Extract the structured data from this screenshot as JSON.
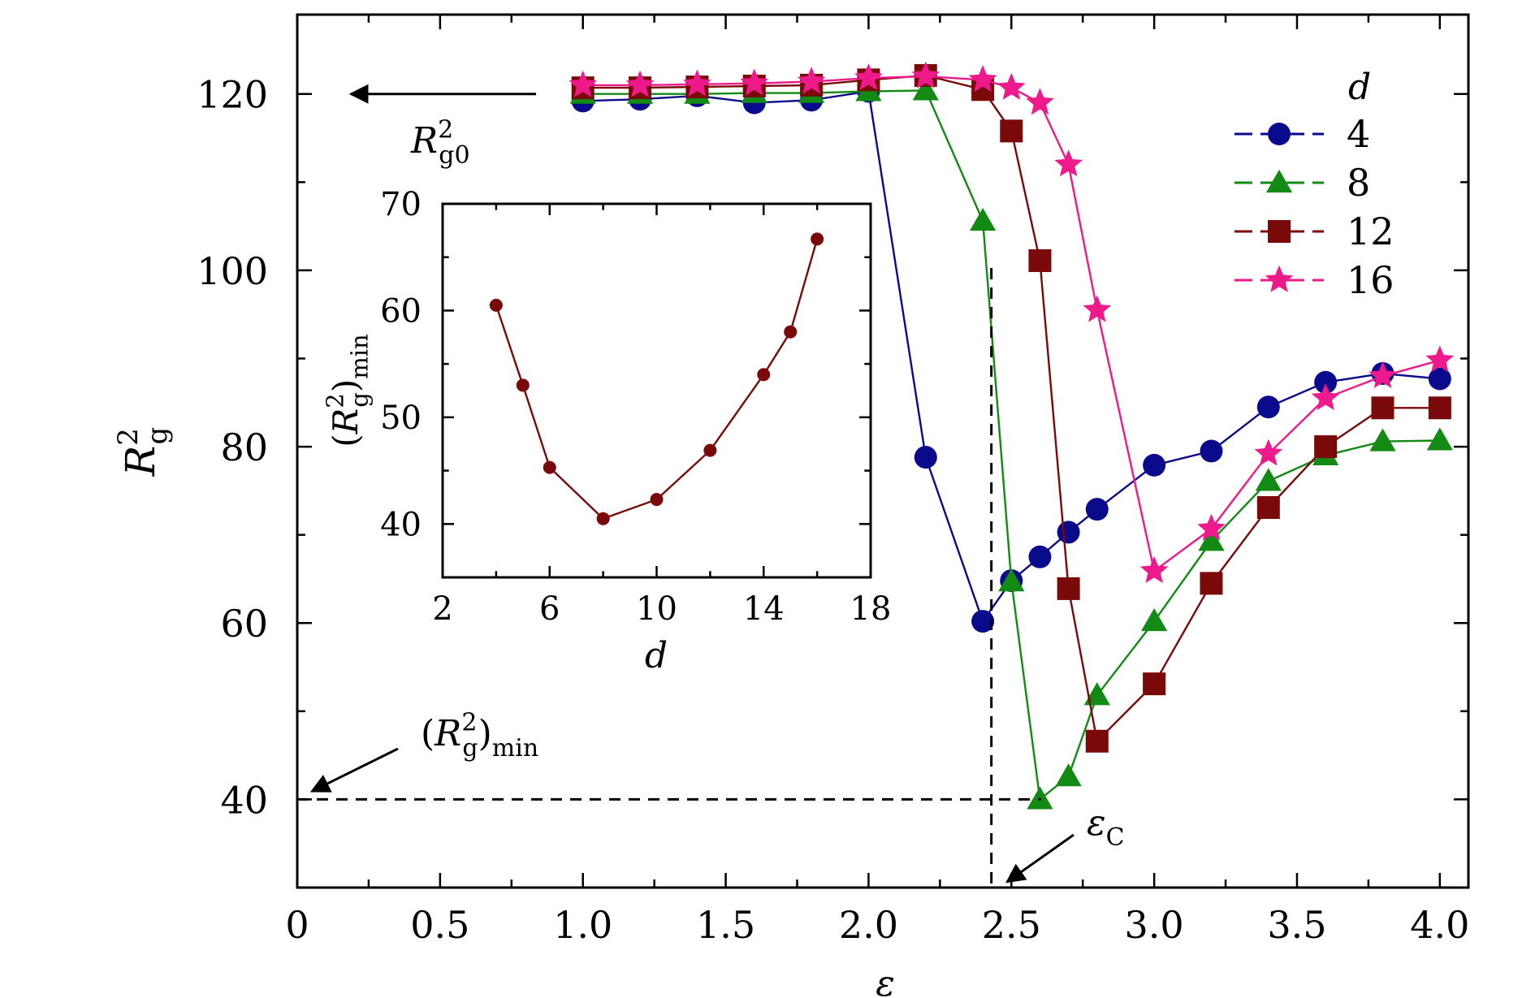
{
  "chart_data": [
    {
      "type": "line",
      "title": "",
      "xlabel": "ε",
      "ylabel": "R_g^2",
      "xlim": [
        0,
        4.1
      ],
      "ylim": [
        30,
        129
      ],
      "x_ticks": [
        0,
        0.5,
        1.0,
        1.5,
        2.0,
        2.5,
        3.0,
        3.5,
        4.0
      ],
      "x_tick_labels": [
        "0",
        "0.5",
        "1.0",
        "1.5",
        "2.0",
        "2.5",
        "3.0",
        "3.5",
        "4.0"
      ],
      "y_ticks": [
        40,
        60,
        80,
        100,
        120
      ],
      "y_tick_labels": [
        "40",
        "60",
        "80",
        "100",
        "120"
      ],
      "grid": false,
      "legend": {
        "title": "d",
        "placement": "top-right"
      },
      "series": [
        {
          "name": "4",
          "color": "#0a0a8c",
          "marker": "circle",
          "x": [
            1.0,
            1.2,
            1.4,
            1.6,
            1.8,
            2.0,
            2.2,
            2.4,
            2.5,
            2.6,
            2.7,
            2.8,
            3.0,
            3.2,
            3.4,
            3.6,
            3.8,
            4.0
          ],
          "y": [
            119.2,
            119.4,
            119.8,
            119.0,
            119.3,
            120.3,
            78.8,
            60.2,
            64.8,
            67.5,
            70.3,
            72.9,
            77.9,
            79.5,
            84.5,
            87.3,
            88.3,
            87.7
          ]
        },
        {
          "name": "8",
          "color": "#138a13",
          "marker": "triangle",
          "x": [
            1.0,
            1.2,
            1.4,
            1.6,
            1.8,
            2.0,
            2.2,
            2.4,
            2.5,
            2.6,
            2.7,
            2.8,
            3.0,
            3.2,
            3.4,
            3.6,
            3.8,
            4.0
          ],
          "y": [
            120.0,
            120.0,
            120.0,
            120.1,
            120.1,
            120.3,
            120.4,
            105.6,
            64.7,
            40.0,
            42.6,
            51.8,
            60.2,
            69.3,
            76.1,
            79.0,
            80.6,
            80.7
          ]
        },
        {
          "name": "12",
          "color": "#7a0a0a",
          "marker": "square",
          "x": [
            1.0,
            1.2,
            1.4,
            1.6,
            1.8,
            2.0,
            2.2,
            2.4,
            2.5,
            2.6,
            2.7,
            2.8,
            3.0,
            3.2,
            3.4,
            3.6,
            3.8,
            4.0
          ],
          "y": [
            120.7,
            120.7,
            120.8,
            120.9,
            121.0,
            121.6,
            122.1,
            120.5,
            115.8,
            101.1,
            63.9,
            46.6,
            53.1,
            64.5,
            73.1,
            80.0,
            84.4,
            84.4
          ]
        },
        {
          "name": "16",
          "color": "#ee1a8c",
          "marker": "star",
          "x": [
            1.0,
            1.2,
            1.4,
            1.6,
            1.8,
            2.0,
            2.2,
            2.4,
            2.5,
            2.6,
            2.7,
            2.8,
            3.0,
            3.2,
            3.4,
            3.6,
            3.8,
            4.0
          ],
          "y": [
            121.0,
            121.0,
            121.1,
            121.2,
            121.4,
            121.8,
            122.0,
            121.6,
            120.7,
            119.0,
            112.0,
            95.5,
            65.9,
            70.7,
            79.2,
            85.5,
            88.0,
            89.8
          ]
        }
      ],
      "annotations": [
        {
          "text": "R_g0^2",
          "target_y": 120
        },
        {
          "text": "(R_g^2)_min",
          "target_y": 40
        },
        {
          "text": "ε_C",
          "target_x": 2.43
        }
      ]
    },
    {
      "type": "line",
      "title": "",
      "xlabel": "d",
      "ylabel": "(R_g^2)_min",
      "xlim": [
        2,
        18
      ],
      "ylim": [
        35,
        70
      ],
      "x_ticks": [
        2,
        6,
        10,
        14,
        18
      ],
      "x_tick_labels": [
        "2",
        "6",
        "10",
        "14",
        "18"
      ],
      "y_ticks": [
        40,
        50,
        60,
        70
      ],
      "y_tick_labels": [
        "40",
        "50",
        "60",
        "70"
      ],
      "grid": false,
      "series": [
        {
          "color": "#7a0a0a",
          "marker": "circle",
          "x": [
            4,
            5,
            6,
            8,
            10,
            12,
            14,
            15,
            16
          ],
          "y": [
            60.5,
            53.0,
            45.3,
            40.5,
            42.3,
            46.9,
            54.0,
            58.0,
            66.7
          ]
        }
      ]
    }
  ]
}
